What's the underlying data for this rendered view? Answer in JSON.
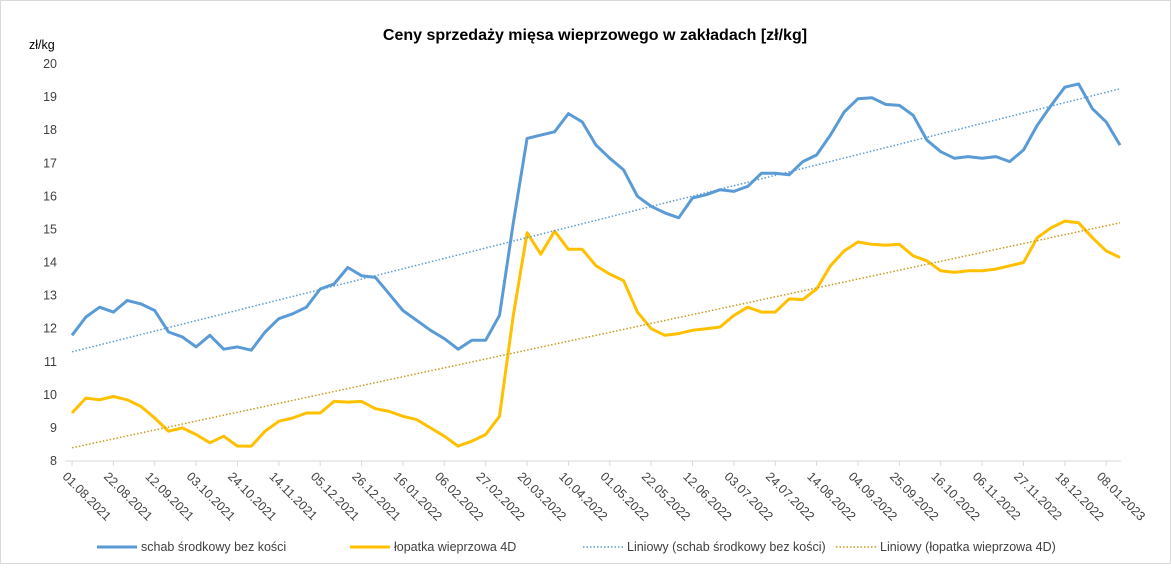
{
  "chart_data": {
    "type": "line",
    "title": "Ceny sprzedaży mięsa wieprzowego w zakładach [zł/kg]",
    "y_axis_label": "zł/kg",
    "ylim": [
      8,
      20
    ],
    "yticks": [
      8,
      9,
      10,
      11,
      12,
      13,
      14,
      15,
      16,
      17,
      18,
      19,
      20
    ],
    "categories": [
      "01.08.2021",
      null,
      null,
      "22.08.2021",
      null,
      null,
      "12.09.2021",
      null,
      null,
      "03.10.2021",
      null,
      null,
      "24.10.2021",
      null,
      null,
      "14.11.2021",
      null,
      null,
      "05.12.2021",
      null,
      null,
      "26.12.2021",
      null,
      null,
      "16.01.2022",
      null,
      null,
      "06.02.2022",
      null,
      null,
      "27.02.2022",
      null,
      null,
      "20.03.2022",
      null,
      null,
      "10.04.2022",
      null,
      null,
      "01.05.2022",
      null,
      null,
      "22.05.2022",
      null,
      null,
      "12.06.2022",
      null,
      null,
      "03.07.2022",
      null,
      null,
      "24.07.2022",
      null,
      null,
      "14.08.2022",
      null,
      null,
      "04.09.2022",
      null,
      null,
      "25.09.2022",
      null,
      null,
      "16.10.2022",
      null,
      null,
      "06.11.2022",
      null,
      null,
      "27.11.2022",
      null,
      null,
      "18.12.2022",
      null,
      null,
      "08.01.2023",
      null
    ],
    "series": [
      {
        "name": "schab środkowy bez kości",
        "color": "#5b9bd5",
        "values": [
          11.8,
          12.35,
          12.65,
          12.5,
          12.85,
          12.75,
          12.55,
          11.9,
          11.75,
          11.45,
          11.8,
          11.38,
          11.45,
          11.35,
          11.9,
          12.3,
          12.45,
          12.65,
          13.2,
          13.35,
          13.85,
          13.6,
          13.55,
          13.05,
          12.55,
          12.25,
          11.95,
          11.7,
          11.38,
          11.65,
          11.65,
          12.4,
          15.2,
          17.75,
          17.85,
          17.95,
          18.5,
          18.25,
          17.55,
          17.15,
          16.8,
          16.0,
          15.7,
          15.5,
          15.35,
          15.95,
          16.05,
          16.2,
          16.15,
          16.3,
          16.7,
          16.7,
          16.65,
          17.05,
          17.25,
          17.85,
          18.55,
          18.95,
          18.98,
          18.78,
          18.75,
          18.45,
          17.7,
          17.35,
          17.15,
          17.2,
          17.15,
          17.2,
          17.05,
          17.4,
          18.15,
          18.75,
          19.3,
          19.4,
          18.65,
          18.25,
          17.55
        ]
      },
      {
        "name": "łopatka wieprzowa 4D",
        "color": "#ffc000",
        "values": [
          9.45,
          9.9,
          9.85,
          9.95,
          9.85,
          9.65,
          9.3,
          8.9,
          9.0,
          8.8,
          8.55,
          8.75,
          8.45,
          8.45,
          8.9,
          9.2,
          9.3,
          9.45,
          9.45,
          9.8,
          9.78,
          9.8,
          9.58,
          9.5,
          9.35,
          9.25,
          9.0,
          8.75,
          8.45,
          8.6,
          8.8,
          9.35,
          12.4,
          14.9,
          14.25,
          14.95,
          14.4,
          14.4,
          13.9,
          13.65,
          13.45,
          12.5,
          12.0,
          11.8,
          11.85,
          11.95,
          12.0,
          12.05,
          12.4,
          12.65,
          12.5,
          12.5,
          12.9,
          12.88,
          13.2,
          13.9,
          14.35,
          14.62,
          14.55,
          14.52,
          14.55,
          14.2,
          14.05,
          13.75,
          13.7,
          13.75,
          13.75,
          13.8,
          13.9,
          14.0,
          14.75,
          15.05,
          15.25,
          15.2,
          14.75,
          14.35,
          14.15
        ]
      },
      {
        "name": "Liniowy (schab środkowy bez kości)",
        "color": "#5b9bd5",
        "style": "dotted",
        "line_ends": [
          11.3,
          19.25
        ]
      },
      {
        "name": "Liniowy (łopatka wieprzowa 4D)",
        "color": "#c89a1e",
        "style": "dotted",
        "line_ends": [
          8.4,
          15.2
        ]
      }
    ]
  }
}
